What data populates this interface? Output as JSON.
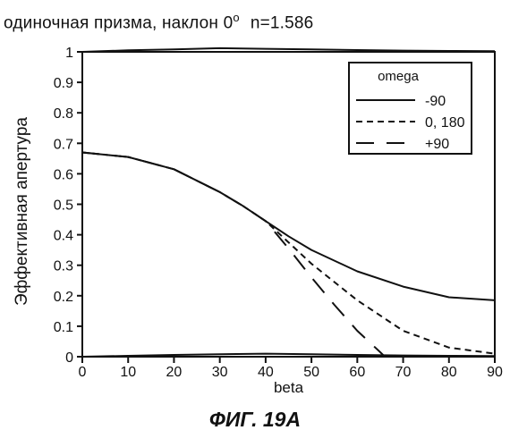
{
  "title": {
    "text": "одиночная призма, наклон 0",
    "degree": "o",
    "index": "n=1.586"
  },
  "caption": "ФИГ. 19А",
  "chart_data": {
    "type": "line",
    "title": "одиночная призма, наклон 0° n=1.586",
    "xlabel": "beta",
    "ylabel": "Эффективная апертура",
    "xlim": [
      0,
      90
    ],
    "ylim": [
      0,
      1
    ],
    "xticks": [
      0,
      10,
      20,
      30,
      40,
      50,
      60,
      70,
      80,
      90
    ],
    "yticks": [
      0,
      0.1,
      0.2,
      0.3,
      0.4,
      0.5,
      0.6,
      0.7,
      0.8,
      0.9,
      1
    ],
    "xtick_labels": [
      "0",
      "10",
      "20",
      "30",
      "40",
      "50",
      "60",
      "70",
      "80",
      "90"
    ],
    "ytick_labels": [
      "0",
      "0.1",
      "0.2",
      "0.3",
      "0.4",
      "0.5",
      "0.6",
      "0.7",
      "0.8",
      "0.9",
      "1"
    ],
    "grid": false,
    "legend": {
      "title": "omega",
      "position": "top-right"
    },
    "series": [
      {
        "name": "-90",
        "style": "solid",
        "x": [
          0,
          10,
          20,
          30,
          35,
          40,
          45,
          50,
          60,
          70,
          80,
          90
        ],
        "y": [
          0.67,
          0.655,
          0.615,
          0.54,
          0.495,
          0.445,
          0.395,
          0.35,
          0.28,
          0.23,
          0.195,
          0.185
        ]
      },
      {
        "name": "0, 180",
        "style": "dashed",
        "x": [
          0,
          10,
          20,
          30,
          35,
          40,
          45,
          50,
          60,
          70,
          80,
          90
        ],
        "y": [
          0.67,
          0.655,
          0.615,
          0.54,
          0.495,
          0.445,
          0.375,
          0.305,
          0.185,
          0.085,
          0.03,
          0.01
        ]
      },
      {
        "name": "+90",
        "style": "longdash",
        "x": [
          0,
          10,
          20,
          30,
          35,
          40,
          45,
          50,
          55,
          60,
          65,
          66
        ],
        "y": [
          0.67,
          0.655,
          0.615,
          0.54,
          0.495,
          0.445,
          0.355,
          0.26,
          0.17,
          0.085,
          0.015,
          0.0
        ]
      },
      {
        "name": "",
        "style": "solid",
        "x": [
          0,
          10,
          20,
          30,
          40,
          50,
          60,
          70,
          80,
          90
        ],
        "y": [
          1.0,
          1.005,
          1.008,
          1.012,
          1.01,
          1.008,
          1.006,
          1.004,
          1.003,
          1.002
        ]
      },
      {
        "name": "",
        "style": "solid",
        "x": [
          0,
          10,
          20,
          30,
          40,
          50,
          60,
          70,
          80,
          90
        ],
        "y": [
          0.0,
          0.003,
          0.006,
          0.008,
          0.01,
          0.008,
          0.006,
          0.004,
          0.003,
          0.002
        ]
      }
    ]
  }
}
